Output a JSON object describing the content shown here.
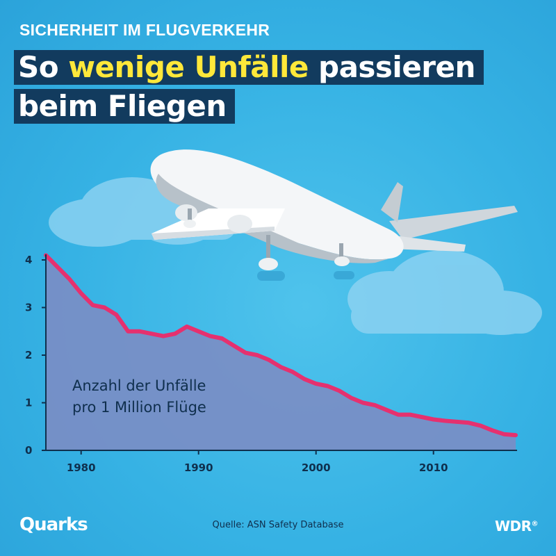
{
  "header": {
    "kicker": "SICHERHEIT IM FLUGVERKEHR",
    "headline_part1": "So ",
    "headline_highlight": "wenige Unfälle",
    "headline_part2": " passieren",
    "headline_line2": "beim Fliegen"
  },
  "chart_data": {
    "type": "area",
    "caption_line1": "Anzahl der Unfälle",
    "caption_line2": "pro 1 Million Flüge",
    "x": [
      1977,
      1978,
      1979,
      1980,
      1981,
      1982,
      1983,
      1984,
      1985,
      1986,
      1987,
      1988,
      1989,
      1990,
      1991,
      1992,
      1993,
      1994,
      1995,
      1996,
      1997,
      1998,
      1999,
      2000,
      2001,
      2002,
      2003,
      2004,
      2005,
      2006,
      2007,
      2008,
      2009,
      2010,
      2011,
      2012,
      2013,
      2014,
      2015,
      2016,
      2017
    ],
    "values": [
      4.1,
      3.85,
      3.6,
      3.3,
      3.05,
      3.0,
      2.85,
      2.5,
      2.5,
      2.45,
      2.4,
      2.45,
      2.6,
      2.5,
      2.4,
      2.35,
      2.2,
      2.05,
      2.0,
      1.9,
      1.75,
      1.65,
      1.5,
      1.4,
      1.35,
      1.25,
      1.1,
      1.0,
      0.95,
      0.85,
      0.75,
      0.75,
      0.7,
      0.65,
      0.62,
      0.6,
      0.58,
      0.52,
      0.42,
      0.34,
      0.32
    ],
    "xlim": [
      1977,
      2017
    ],
    "ylim": [
      0,
      4
    ],
    "x_ticks": [
      1980,
      1990,
      2000,
      2010
    ],
    "y_ticks": [
      0,
      1,
      2,
      3,
      4
    ],
    "colors": {
      "line": "#e5316f",
      "fill": "#7b8dc4",
      "text": "#0f2f4d"
    }
  },
  "footer": {
    "logo_left": "Quarks",
    "source": "Quelle: ASN Safety Database",
    "logo_right": "WDR",
    "logo_right_mark": "®"
  }
}
